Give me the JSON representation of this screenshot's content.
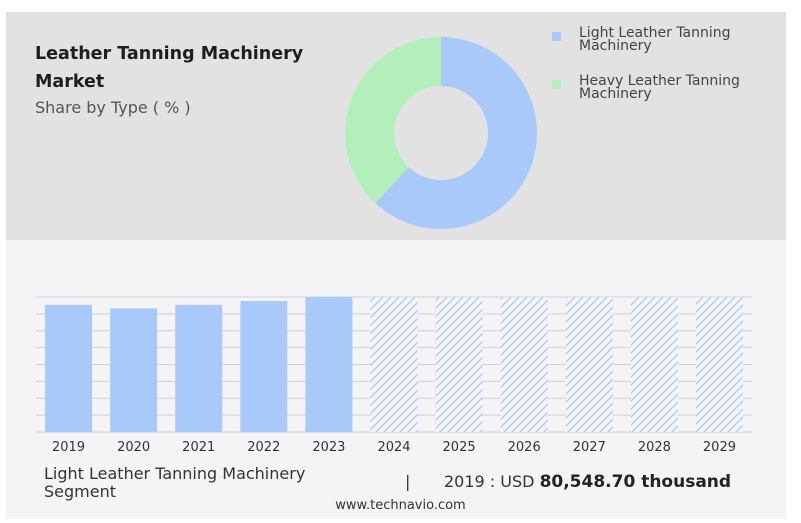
{
  "header": {
    "title": "Leather Tanning Machinery Market",
    "subtitle": "Share by Type ( % )"
  },
  "legend": [
    {
      "label": "Light Leather Tanning Machinery",
      "color": "#a9c9fb"
    },
    {
      "label": "Heavy Leather Tanning Machinery",
      "color": "#b3efba"
    }
  ],
  "chart_data": [
    {
      "type": "pie",
      "donut": true,
      "categories": [
        "Light Leather Tanning Machinery",
        "Heavy Leather Tanning Machinery"
      ],
      "values": [
        62,
        38
      ],
      "colors": [
        "#a9c9fb",
        "#b3efba"
      ]
    },
    {
      "type": "bar",
      "categories": [
        "2019",
        "2020",
        "2021",
        "2022",
        "2023",
        "2024",
        "2025",
        "2026",
        "2027",
        "2028",
        "2029"
      ],
      "values": [
        80548.7,
        78300,
        80548.7,
        83000,
        85500,
        85500,
        85500,
        85500,
        85500,
        85500,
        85500
      ],
      "forecast_from": "2024",
      "ylim": [
        0,
        85500
      ],
      "grid": true,
      "color": "#a9c9fb"
    }
  ],
  "footer": {
    "segment_label": "Light Leather Tanning Machinery Segment",
    "separator": "|",
    "value_prefix": "2019 : USD ",
    "value": "80,548.70 thousand",
    "site": "www.technavio.com"
  }
}
